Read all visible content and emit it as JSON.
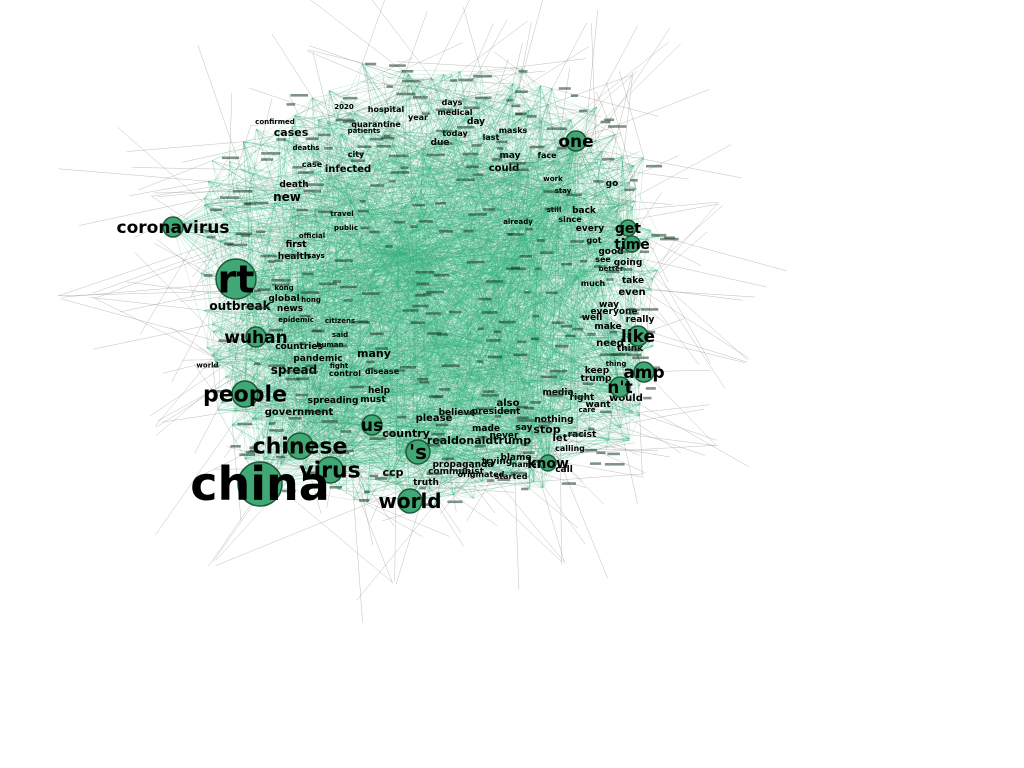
{
  "colors": {
    "node_fill": "#3fa874",
    "node_stroke": "#1d5a3a",
    "edge_green": "#2fb27a",
    "edge_gray": "#8a8a82",
    "background": "#ffffff"
  },
  "graph": {
    "major_nodes": [
      {
        "id": "china",
        "label": "china",
        "weight": 10
      },
      {
        "id": "rt",
        "label": "rt",
        "weight": 9
      },
      {
        "id": "people",
        "label": "people",
        "weight": 6
      },
      {
        "id": "chinese",
        "label": "chinese",
        "weight": 6
      },
      {
        "id": "virus",
        "label": "virus",
        "weight": 6
      },
      {
        "id": "world",
        "label": "world",
        "weight": 5
      },
      {
        "id": "coronavirus",
        "label": "coronavirus",
        "weight": 4
      },
      {
        "id": "wuhan",
        "label": "wuhan",
        "weight": 4
      },
      {
        "id": "s",
        "label": "'s",
        "weight": 5
      },
      {
        "id": "amp",
        "label": "amp",
        "weight": 4
      },
      {
        "id": "nt",
        "label": "n't",
        "weight": 4
      },
      {
        "id": "like",
        "label": "like",
        "weight": 4
      },
      {
        "id": "one",
        "label": "one",
        "weight": 4
      },
      {
        "id": "get",
        "label": "get",
        "weight": 3
      },
      {
        "id": "time",
        "label": "time",
        "weight": 3
      },
      {
        "id": "us",
        "label": "us",
        "weight": 4
      },
      {
        "id": "know",
        "label": "know",
        "weight": 3
      }
    ],
    "medium_labels": [
      "outbreak",
      "cases",
      "infected",
      "new",
      "spread",
      "government",
      "country",
      "realdonaldtrump",
      "ccp",
      "stop",
      "even",
      "would",
      "health",
      "first",
      "pandemic",
      "many",
      "communist",
      "truth",
      "also",
      "please",
      "need",
      "death",
      "could",
      "may",
      "think",
      "trump",
      "media",
      "let",
      "go",
      "good",
      "take",
      "going",
      "make",
      "well",
      "really",
      "way",
      "everyone",
      "right",
      "want",
      "keep",
      "back",
      "every",
      "news",
      "global",
      "countries",
      "spreading",
      "must",
      "help",
      "control",
      "propaganda",
      "originated",
      "started",
      "call",
      "calling",
      "racist",
      "say",
      "made",
      "never",
      "blame",
      "trying",
      "name",
      "nothing",
      "president",
      "believe",
      "hospital",
      "medical",
      "year",
      "day",
      "days",
      "masks",
      "face",
      "today",
      "last",
      "due",
      "quarantine",
      "patients",
      "deaths",
      "case",
      "confirmed",
      "city",
      "2020",
      "work",
      "since",
      "already",
      "got",
      "see",
      "much",
      "better",
      "thing",
      "care",
      "kong",
      "hong",
      "public",
      "official",
      "travel",
      "first",
      "epidemic",
      "citizens",
      "disease",
      "human",
      "fight",
      "world",
      "said",
      "says",
      "stay",
      "still"
    ]
  }
}
